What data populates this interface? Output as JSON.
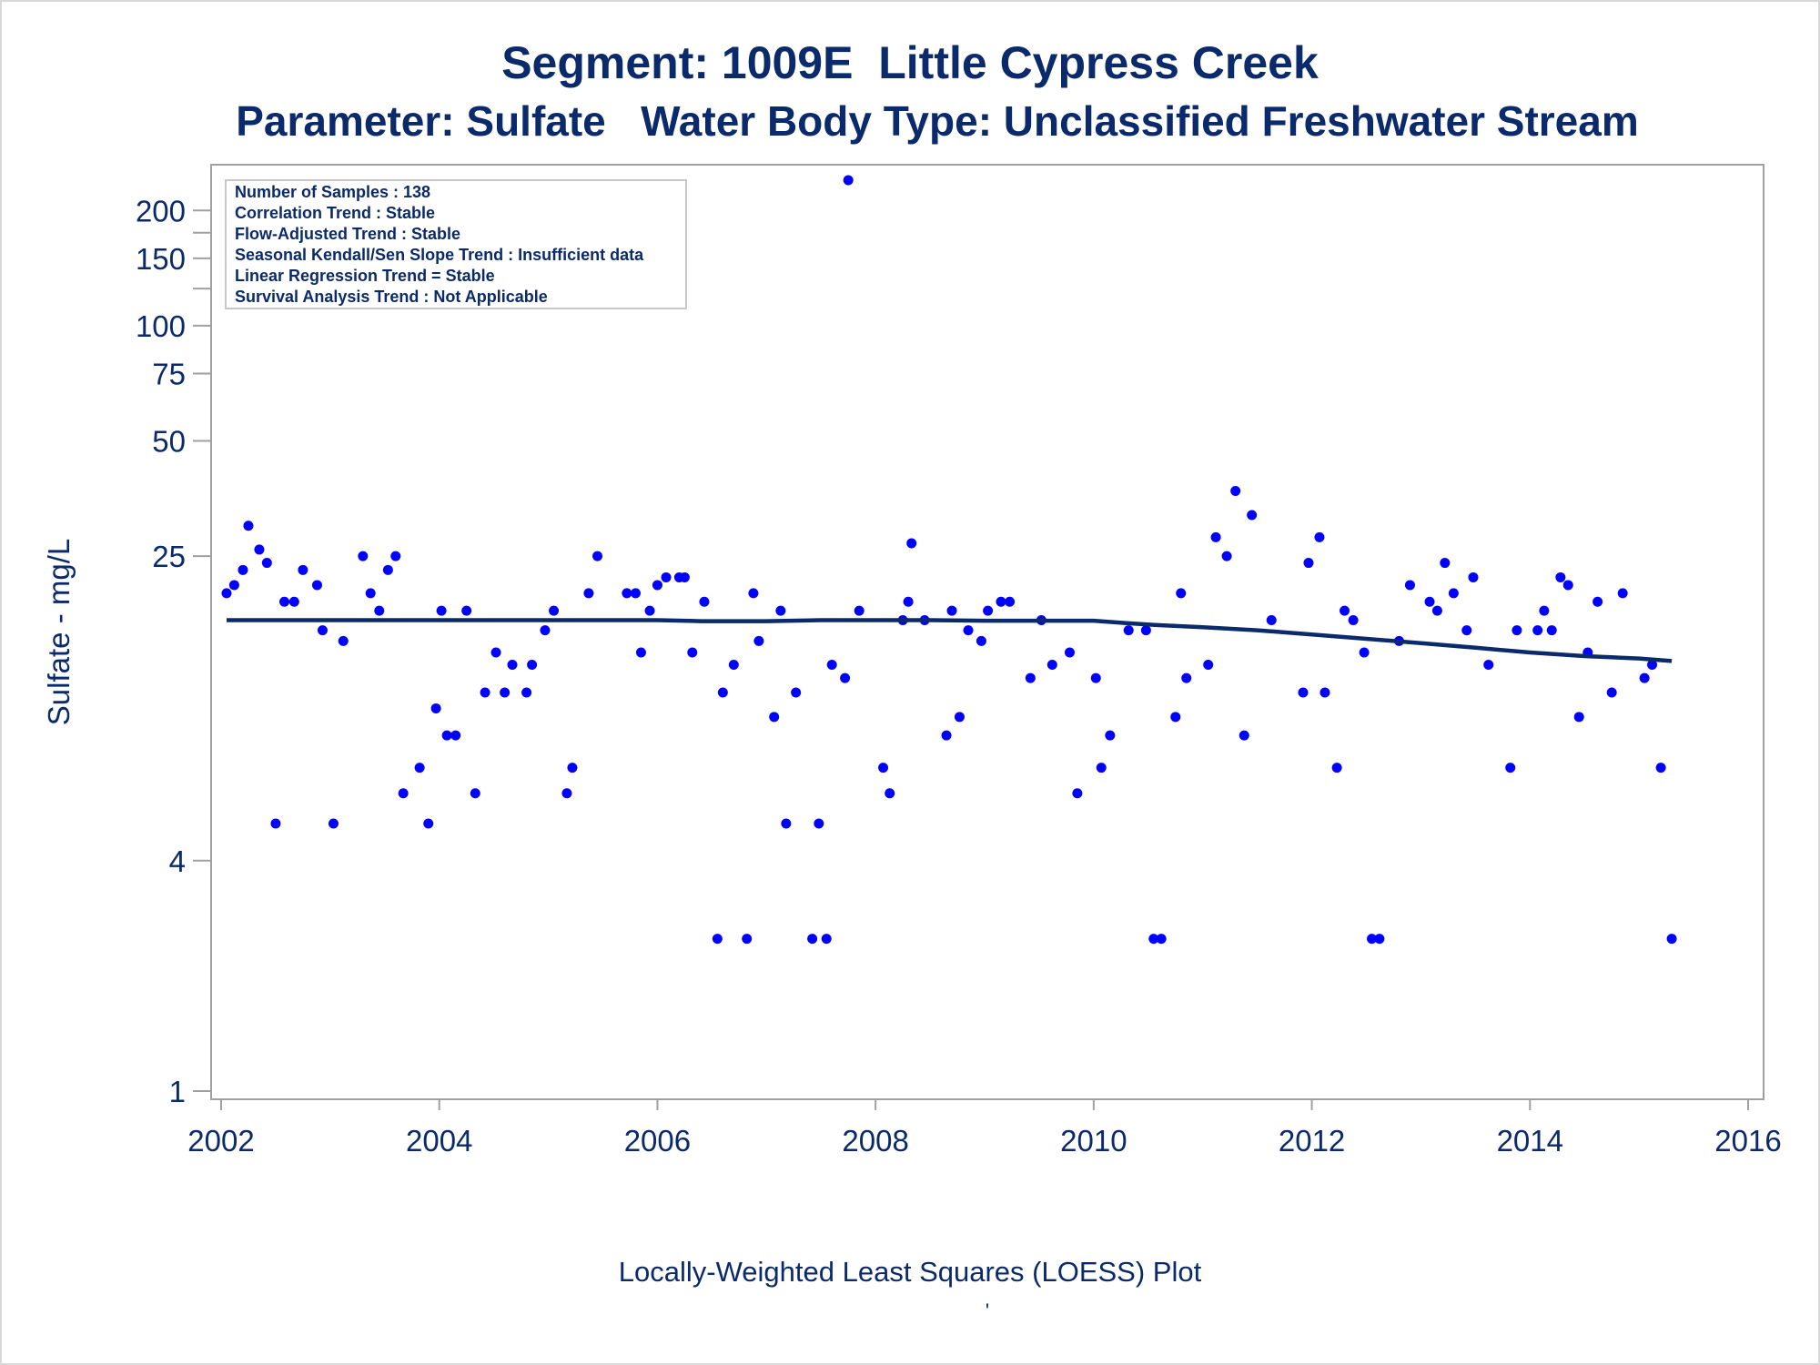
{
  "chart_data": {
    "type": "scatter",
    "title": "Segment: 1009E  Little Cypress Creek",
    "subtitle": "Parameter: Sulfate   Water Body Type: Unclassified Freshwater Stream",
    "xlabel": "",
    "ylabel": "Sulfate - mg/L",
    "footnote": "Locally-Weighted Least Squares (LOESS) Plot",
    "footnote_mark": "'",
    "y_scale": "log",
    "xlim": [
      2002,
      2016
    ],
    "ylim": [
      1,
      240
    ],
    "x_ticks": [
      2002,
      2004,
      2006,
      2008,
      2010,
      2012,
      2014,
      2016
    ],
    "y_ticks": [
      1,
      4,
      25,
      50,
      75,
      100,
      150,
      200
    ],
    "y_minor_ticks": [
      125,
      175
    ],
    "grid": false,
    "legend_placement": "top-left",
    "stats_box": [
      "Number of Samples : 138",
      "Correlation Trend : Stable",
      "Flow-Adjusted Trend : Stable",
      "Seasonal Kendall/Sen Slope Trend : Insufficient data",
      "Linear Regression Trend = Stable",
      "Survival Analysis Trend : Not Applicable"
    ],
    "colors": {
      "points": "#0000ff",
      "loess": "#0b2a6b",
      "text": "#0b2a6b",
      "axis": "#a0a0a0"
    },
    "series": [
      {
        "kind": "points",
        "x": [
          2002.05,
          2002.12,
          2002.2,
          2002.25,
          2002.35,
          2002.42,
          2002.5,
          2002.58,
          2002.67,
          2002.75,
          2002.88,
          2002.93,
          2003.03,
          2003.12,
          2003.3,
          2003.37,
          2003.45,
          2003.53,
          2003.6,
          2003.67,
          2003.82,
          2003.9,
          2003.97,
          2004.02,
          2004.07,
          2004.15,
          2004.25,
          2004.33,
          2004.42,
          2004.52,
          2004.6,
          2004.67,
          2004.8,
          2004.85,
          2004.97,
          2005.05,
          2005.17,
          2005.22,
          2005.37,
          2005.45,
          2005.72,
          2005.8,
          2005.85,
          2005.93,
          2006.0,
          2006.08,
          2006.2,
          2006.25,
          2006.32,
          2006.43,
          2006.55,
          2006.6,
          2006.7,
          2006.82,
          2006.88,
          2006.93,
          2007.07,
          2007.13,
          2007.18,
          2007.27,
          2007.42,
          2007.48,
          2007.55,
          2007.6,
          2007.72,
          2007.75,
          2007.85,
          2008.07,
          2008.13,
          2008.25,
          2008.3,
          2008.33,
          2008.45,
          2008.65,
          2008.7,
          2008.77,
          2008.85,
          2008.97,
          2009.03,
          2009.15,
          2009.23,
          2009.42,
          2009.52,
          2009.62,
          2009.78,
          2009.85,
          2010.02,
          2010.07,
          2010.15,
          2010.32,
          2010.48,
          2010.55,
          2010.62,
          2010.75,
          2010.8,
          2010.85,
          2011.05,
          2011.12,
          2011.22,
          2011.3,
          2011.38,
          2011.45,
          2011.63,
          2011.92,
          2011.97,
          2012.07,
          2012.12,
          2012.23,
          2012.3,
          2012.38,
          2012.48,
          2012.55,
          2012.62,
          2012.8,
          2012.9,
          2013.08,
          2013.15,
          2013.22,
          2013.3,
          2013.42,
          2013.48,
          2013.62,
          2013.82,
          2013.88,
          2014.07,
          2014.13,
          2014.2,
          2014.28,
          2014.35,
          2014.45,
          2014.53,
          2014.62,
          2014.75,
          2014.85,
          2015.05,
          2015.12,
          2015.2,
          2015.3
        ],
        "y": [
          20,
          21,
          23,
          30,
          26,
          24,
          5,
          19,
          19,
          23,
          21,
          16,
          5,
          15,
          25,
          20,
          18,
          23,
          25,
          6,
          7,
          5,
          10,
          18,
          8.5,
          8.5,
          18,
          6,
          11,
          14,
          11,
          13,
          11,
          13,
          16,
          18,
          6,
          7,
          20,
          25,
          20,
          20,
          14,
          18,
          21,
          22,
          22,
          22,
          14,
          19,
          2.5,
          11,
          13,
          2.5,
          20,
          15,
          9.5,
          18,
          5,
          11,
          2.5,
          5,
          2.5,
          13,
          12,
          240,
          18,
          7,
          6,
          17,
          19,
          27,
          17,
          8.5,
          18,
          9.5,
          16,
          15,
          18,
          19,
          19,
          12,
          17,
          13,
          14,
          6,
          12,
          7,
          8.5,
          16,
          16,
          2.5,
          2.5,
          9.5,
          20,
          12,
          13,
          28,
          25,
          37,
          8.5,
          32,
          17,
          11,
          24,
          28,
          11,
          7,
          18,
          17,
          14,
          2.5,
          2.5,
          15,
          21,
          19,
          18,
          24,
          20,
          16,
          22,
          13,
          7,
          16,
          16,
          18,
          16,
          22,
          21,
          9.5,
          14,
          19,
          11,
          20,
          12,
          13,
          7,
          2.5
        ]
      },
      {
        "kind": "loess",
        "x": [
          2002.05,
          2004,
          2006,
          2006.4,
          2007,
          2007.5,
          2008,
          2008.5,
          2009,
          2009.5,
          2010,
          2010.3,
          2010.6,
          2011,
          2011.5,
          2012,
          2012.5,
          2013,
          2013.5,
          2014,
          2014.5,
          2015,
          2015.3
        ],
        "y": [
          17.0,
          17.0,
          17.0,
          16.9,
          16.9,
          17.0,
          17.0,
          17.0,
          16.95,
          16.95,
          16.95,
          16.7,
          16.5,
          16.3,
          16.0,
          15.6,
          15.2,
          14.8,
          14.4,
          14.0,
          13.7,
          13.5,
          13.3
        ]
      }
    ]
  }
}
